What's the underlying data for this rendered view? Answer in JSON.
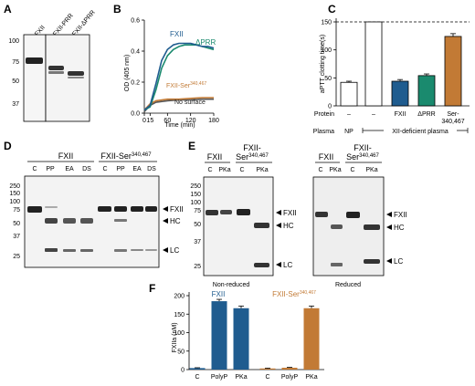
{
  "panels": {
    "A": {
      "letter": "A",
      "lanes": [
        "FXII",
        "FXII-PRR",
        "FXII-ΔPRR"
      ],
      "mw_markers": [
        "100",
        "75",
        "50",
        "37"
      ]
    },
    "B": {
      "letter": "B",
      "ylabel": "OD (405 nm)",
      "xlabel": "Time (min)",
      "series_labels": {
        "fxii": "FXII",
        "dprr": "ΔPRR",
        "ser": "FXII-Ser",
        "ser_sup": "340,467",
        "nosurf": "No surface"
      }
    },
    "C": {
      "letter": "C",
      "ylabel": "aPTT clotting time(s)",
      "row_protein_label": "Protein",
      "row_plasma_label": "Plasma",
      "protein_values": [
        "–",
        "–",
        "FXII",
        "ΔPRR",
        "Ser-\n340,467"
      ],
      "plasma_np": "NP",
      "plasma_deficient": "XII-deficient plasma"
    },
    "D": {
      "letter": "D",
      "group1": "FXII",
      "group2": "FXII-Ser",
      "group2_sup": "340,467",
      "lanes": [
        "C",
        "PP",
        "EA",
        "DS",
        "C",
        "PP",
        "EA",
        "DS"
      ],
      "mw_markers": [
        "250",
        "150",
        "100",
        "75",
        "50",
        "37",
        "25"
      ],
      "bands": [
        "FXII",
        "HC",
        "LC"
      ]
    },
    "E": {
      "letter": "E",
      "group1": "FXII",
      "group2": "FXII-",
      "group2b": "Ser",
      "group2_sup": "340,467",
      "lanes": [
        "C",
        "PKa",
        "C",
        "PKa"
      ],
      "mw_markers": [
        "250",
        "150",
        "100",
        "75",
        "50",
        "37",
        "25"
      ],
      "bands": [
        "FXII",
        "HC",
        "LC"
      ],
      "caption_left": "Non-reduced",
      "caption_right": "Reduced"
    },
    "F": {
      "letter": "F",
      "ylabel": "FXIIa (nM)",
      "legend_fxii": "FXII",
      "legend_ser": "FXII-Ser",
      "legend_ser_sup": "340,467"
    }
  },
  "colors": {
    "fxii_blue": "#1f5c8f",
    "dprr_green": "#1a8a6e",
    "ser_orange": "#c27a35",
    "np_white": "#ffffff",
    "text": "#111111"
  },
  "chart_data": [
    {
      "type": "line",
      "panel": "B",
      "xlabel": "Time (min)",
      "ylabel": "OD (405 nm)",
      "xticks": [
        "0",
        "15",
        "60",
        "120",
        "180"
      ],
      "yticks": [
        "0.0",
        "0.2",
        "0.4",
        "0.6"
      ],
      "xlim": [
        0,
        180
      ],
      "ylim": [
        0,
        0.6
      ],
      "series": [
        {
          "name": "FXII",
          "color": "#1f5c8f",
          "x": [
            0,
            15,
            30,
            45,
            60,
            75,
            90,
            105,
            120,
            135,
            150,
            165,
            180
          ],
          "y": [
            0.02,
            0.05,
            0.19,
            0.34,
            0.41,
            0.44,
            0.45,
            0.45,
            0.45,
            0.44,
            0.43,
            0.43,
            0.42
          ]
        },
        {
          "name": "ΔPRR",
          "color": "#1a8a6e",
          "x": [
            0,
            15,
            30,
            45,
            60,
            75,
            90,
            105,
            120,
            135,
            150,
            165,
            180
          ],
          "y": [
            0.02,
            0.04,
            0.15,
            0.29,
            0.37,
            0.41,
            0.43,
            0.44,
            0.44,
            0.44,
            0.43,
            0.42,
            0.41
          ]
        },
        {
          "name": "FXII-Ser340,467",
          "color": "#c27a35",
          "x": [
            0,
            15,
            30,
            60,
            90,
            120,
            150,
            180
          ],
          "y": [
            0.02,
            0.06,
            0.08,
            0.09,
            0.09,
            0.095,
            0.1,
            0.1
          ]
        },
        {
          "name": "No surface",
          "color": "#555555",
          "x": [
            0,
            15,
            30,
            60,
            90,
            120,
            150,
            180
          ],
          "y": [
            0.01,
            0.05,
            0.07,
            0.08,
            0.085,
            0.085,
            0.09,
            0.09
          ]
        }
      ]
    },
    {
      "type": "bar",
      "panel": "C",
      "ylabel": "aPTT clotting time(s)",
      "yticks": [
        "0",
        "50",
        "100",
        "150"
      ],
      "ylim": [
        0,
        150
      ],
      "categories": [
        "NP",
        "XII-def",
        "FXII",
        "ΔPRR",
        "Ser-340,467"
      ],
      "values": [
        42,
        150,
        44,
        54,
        124
      ],
      "errors": [
        2,
        0,
        3,
        3,
        5
      ],
      "colors": [
        "#ffffff",
        "#ffffff",
        "#1f5c8f",
        "#1a8a6e",
        "#c27a35"
      ],
      "reference_line": 150
    },
    {
      "type": "bar",
      "panel": "F",
      "ylabel": "FXIIa (nM)",
      "yticks": [
        "0",
        "50",
        "100",
        "150",
        "200"
      ],
      "ylim": [
        0,
        200
      ],
      "categories": [
        "C",
        "PolyP",
        "PKa",
        "C",
        "PolyP",
        "PKa"
      ],
      "values": [
        4,
        185,
        166,
        3,
        5,
        166
      ],
      "errors": [
        1,
        5,
        6,
        1,
        1,
        6
      ],
      "colors": [
        "#1f5c8f",
        "#1f5c8f",
        "#1f5c8f",
        "#c27a35",
        "#c27a35",
        "#c27a35"
      ]
    }
  ]
}
